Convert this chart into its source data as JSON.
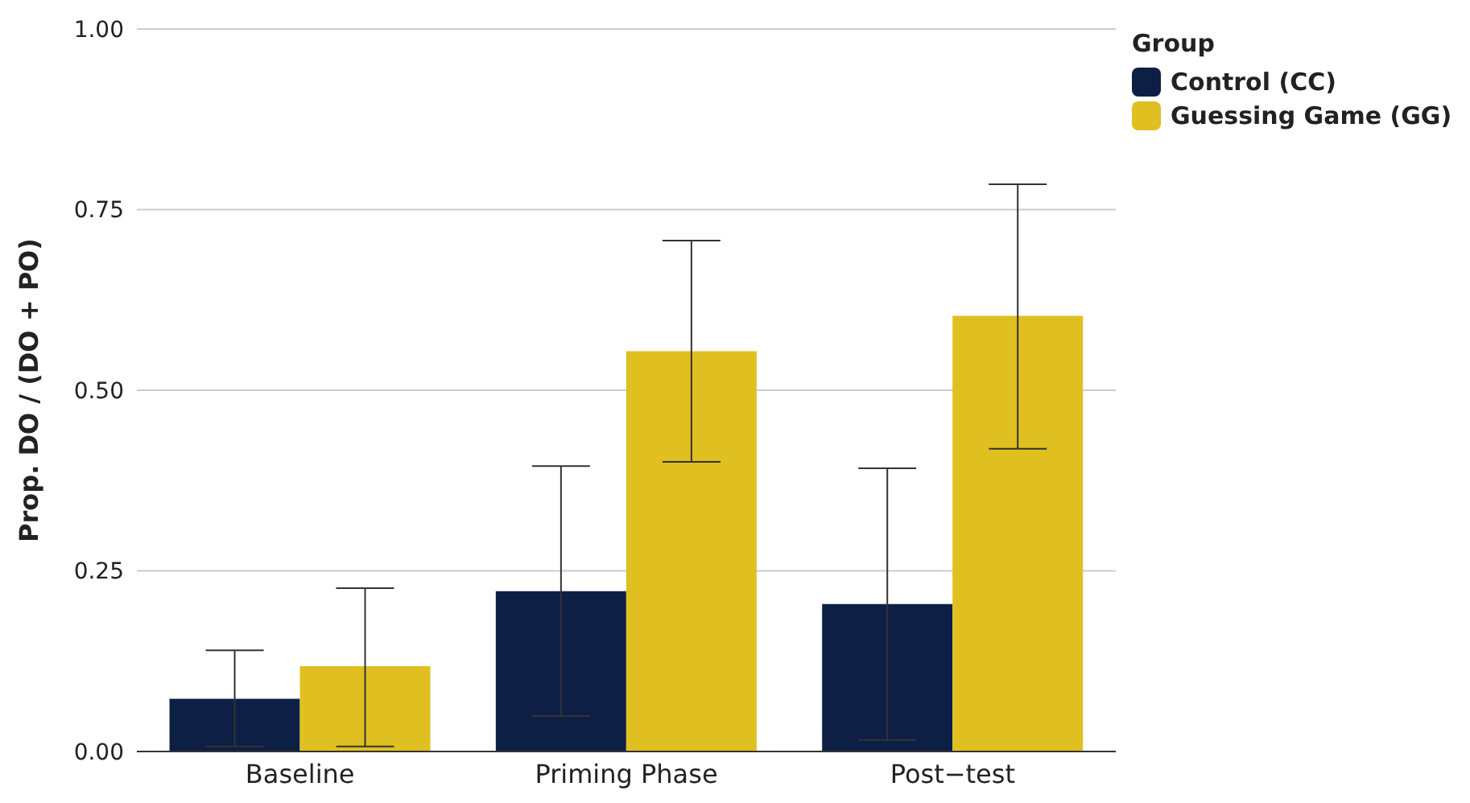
{
  "chart_data": {
    "type": "bar",
    "ylabel": "Prop. DO / (DO + PO)",
    "legend_title": "Group",
    "categories": [
      "Baseline",
      "Priming Phase",
      "Post−test"
    ],
    "series": [
      {
        "name": "Control (CC)",
        "color": "#0e1f45",
        "values": [
          0.073,
          0.222,
          0.204
        ],
        "errors": [
          [
            0.007,
            0.14
          ],
          [
            0.049,
            0.395
          ],
          [
            0.016,
            0.392
          ]
        ]
      },
      {
        "name": "Guessing Game (GG)",
        "color": "#dfc020",
        "values": [
          0.118,
          0.554,
          0.603
        ],
        "errors": [
          [
            0.007,
            0.226
          ],
          [
            0.401,
            0.707
          ],
          [
            0.419,
            0.785
          ]
        ]
      }
    ],
    "ylim": [
      0,
      1
    ],
    "yticks": [
      {
        "value": 0,
        "label": "0.00"
      },
      {
        "value": 0.25,
        "label": "0.25"
      },
      {
        "value": 0.5,
        "label": "0.50"
      },
      {
        "value": 0.75,
        "label": "0.75"
      },
      {
        "value": 1,
        "label": "1.00"
      }
    ],
    "grid": "y",
    "legend": "top right"
  }
}
